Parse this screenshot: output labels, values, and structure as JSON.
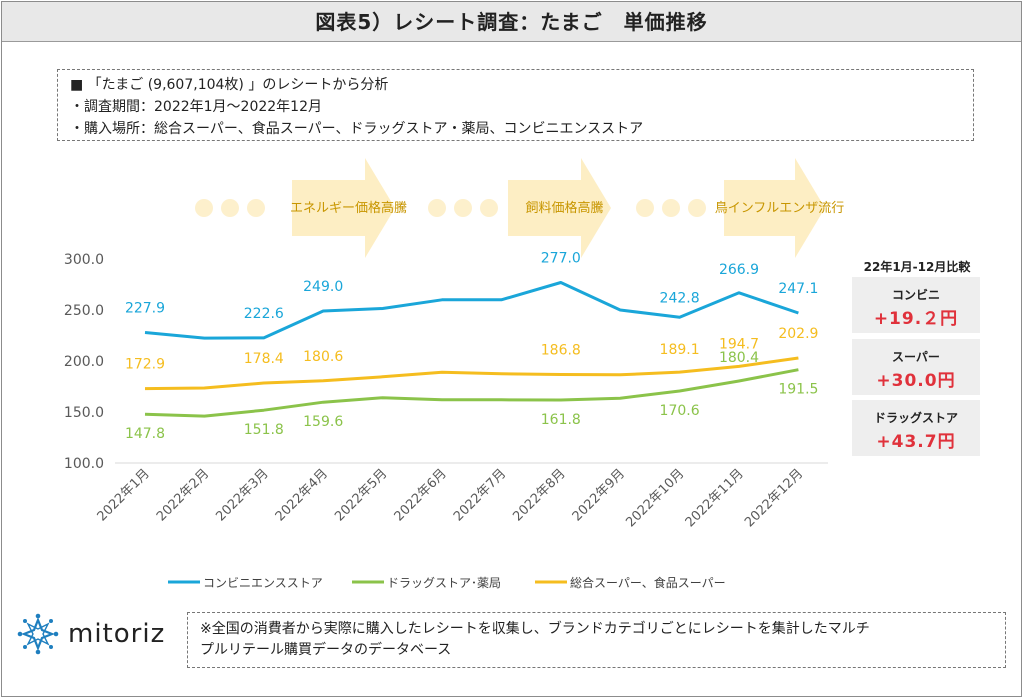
{
  "header": {
    "title": "図表5）レシート調査：たまご　単価推移"
  },
  "info": {
    "line1": "■ 「たまご (9,607,104枚) 」のレシートから分析",
    "line2": "・調査期間：2022年1月～2022年12月",
    "line3": "・購入場所：総合スーパー、食品スーパー、ドラッグストア・薬局、コンビニエンスストア"
  },
  "events": [
    {
      "label": "エネルギー価格高騰"
    },
    {
      "label": "飼料価格高騰"
    },
    {
      "label": "鳥インフルエンザ流行"
    }
  ],
  "comparison": {
    "header": "22年1月-12月比較",
    "items": [
      {
        "name": "コンビニ",
        "value": "+19.２円"
      },
      {
        "name": "スーパー",
        "value": "+30.0円"
      },
      {
        "name": "ドラッグストア",
        "value": "+43.7円"
      }
    ]
  },
  "chart_data": {
    "type": "line",
    "categories": [
      "2022年1月",
      "2022年2月",
      "2022年3月",
      "2022年4月",
      "2022年5月",
      "2022年6月",
      "2022年7月",
      "2022年8月",
      "2022年9月",
      "2022年10月",
      "2022年11月",
      "2022年12月"
    ],
    "ylim": [
      100,
      300
    ],
    "yticks": [
      "100.0",
      "150.0",
      "200.0",
      "250.0",
      "300.0"
    ],
    "grid": false,
    "legend_position": "bottom",
    "series": [
      {
        "name": "コンビニエンスストア",
        "color": "#1aa6d9",
        "values": [
          227.9,
          222.5,
          222.6,
          249.0,
          251.5,
          260.0,
          260.0,
          277.0,
          250.0,
          242.8,
          266.9,
          247.1
        ],
        "labels": [
          "227.9",
          "",
          "222.6",
          "249.0",
          "",
          "",
          "",
          "277.0",
          "",
          "242.8",
          "266.9",
          "247.1"
        ]
      },
      {
        "name": "ドラッグストア･薬局",
        "color": "#8bc34a",
        "values": [
          147.8,
          146.0,
          151.8,
          159.6,
          164.0,
          162.0,
          162.0,
          161.8,
          163.5,
          170.6,
          180.4,
          191.5
        ],
        "labels": [
          "147.8",
          "",
          "151.8",
          "159.6",
          "",
          "",
          "",
          "161.8",
          "",
          "170.6",
          "180.4",
          "191.5"
        ]
      },
      {
        "name": "総合スーパー、食品スーパー",
        "color": "#f5bd1f",
        "values": [
          172.9,
          173.5,
          178.4,
          180.6,
          184.5,
          189.0,
          187.5,
          186.8,
          186.5,
          189.1,
          194.7,
          202.9
        ],
        "labels": [
          "172.9",
          "",
          "178.4",
          "180.6",
          "",
          "",
          "",
          "186.8",
          "",
          "189.1",
          "194.7",
          "202.9"
        ]
      }
    ]
  },
  "logo": {
    "text": "mitoriz"
  },
  "note": {
    "line1": "※全国の消費者から実際に購入したレシートを収集し、ブランドカテゴリごとにレシートを集計したマルチ",
    "line2": "プルリテール購買データのデータベース"
  }
}
